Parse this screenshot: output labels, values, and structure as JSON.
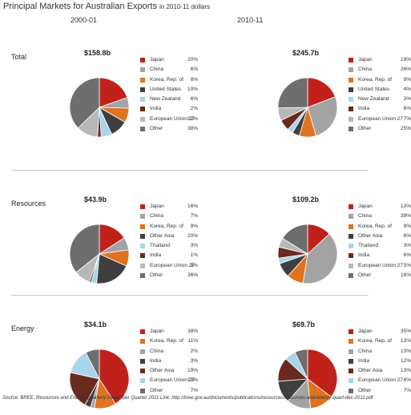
{
  "header": {
    "title": "Principal Markets for Australian Exports",
    "subtitle": "in 2010-11 dollars",
    "col_left": "2000-01",
    "col_right": "2010-11"
  },
  "source": "Source:  BREE, Resources and Energy Quarterly December Quarter 2011   Link:  http://bree.gov.au/documents/publications/resources/resources-and-energy-quart-dec-2011.pdf",
  "chart_data": [
    {
      "type": "pie",
      "section": "Total",
      "period": "2000-01",
      "total": "$158.8b",
      "slices": [
        {
          "label": "Japan",
          "pct": "20%",
          "value": 20,
          "color": "#c0221b"
        },
        {
          "label": "China",
          "pct": "6%",
          "value": 6,
          "color": "#a3a3a3"
        },
        {
          "label": "Korea, Rep. of",
          "pct": "8%",
          "value": 8,
          "color": "#e07320"
        },
        {
          "label": "United States",
          "pct": "10%",
          "value": 10,
          "color": "#3f3f3f"
        },
        {
          "label": "New Zealand",
          "pct": "6%",
          "value": 6,
          "color": "#a9d4ec"
        },
        {
          "label": "India",
          "pct": "2%",
          "value": 2,
          "color": "#6a2a1e"
        },
        {
          "label": "European Union 27",
          "pct": "12%",
          "value": 12,
          "color": "#b8b8b8"
        },
        {
          "label": "Other",
          "pct": "38%",
          "value": 38,
          "color": "#6e6e6e"
        }
      ]
    },
    {
      "type": "pie",
      "section": "Total",
      "period": "2010-11",
      "total": "$245.7b",
      "slices": [
        {
          "label": "Japan",
          "pct": "19%",
          "value": 19,
          "color": "#c0221b"
        },
        {
          "label": "China",
          "pct": "26%",
          "value": 26,
          "color": "#a3a3a3"
        },
        {
          "label": "Korea, Rep. of",
          "pct": "9%",
          "value": 9,
          "color": "#e07320"
        },
        {
          "label": "United States",
          "pct": "4%",
          "value": 4,
          "color": "#3f3f3f"
        },
        {
          "label": "New Zealand",
          "pct": "3%",
          "value": 3,
          "color": "#a9d4ec"
        },
        {
          "label": "India",
          "pct": "6%",
          "value": 6,
          "color": "#6a2a1e"
        },
        {
          "label": "European Union 27",
          "pct": "7%",
          "value": 7,
          "color": "#b8b8b8"
        },
        {
          "label": "Other",
          "pct": "25%",
          "value": 25,
          "color": "#6e6e6e"
        }
      ]
    },
    {
      "type": "pie",
      "section": "Resources",
      "period": "2000-01",
      "total": "$43.9b",
      "slices": [
        {
          "label": "Japan",
          "pct": "16%",
          "value": 16,
          "color": "#c0221b"
        },
        {
          "label": "China",
          "pct": "7%",
          "value": 7,
          "color": "#a3a3a3"
        },
        {
          "label": "Korea, Rep. of",
          "pct": "9%",
          "value": 9,
          "color": "#e07320"
        },
        {
          "label": "Other Asia",
          "pct": "20%",
          "value": 20,
          "color": "#3f3f3f"
        },
        {
          "label": "Thailand",
          "pct": "3%",
          "value": 3,
          "color": "#a9d4ec"
        },
        {
          "label": "India",
          "pct": "1%",
          "value": 1,
          "color": "#6a2a1e"
        },
        {
          "label": "European Union 27",
          "pct": "9%",
          "value": 9,
          "color": "#b8b8b8"
        },
        {
          "label": "Other",
          "pct": "36%",
          "value": 36,
          "color": "#6e6e6e"
        }
      ]
    },
    {
      "type": "pie",
      "section": "Resources",
      "period": "2010-11",
      "total": "$109.2b",
      "slices": [
        {
          "label": "Japan",
          "pct": "13%",
          "value": 13,
          "color": "#c0221b"
        },
        {
          "label": "China",
          "pct": "39%",
          "value": 39,
          "color": "#a3a3a3"
        },
        {
          "label": "Korea, Rep. of",
          "pct": "9%",
          "value": 9,
          "color": "#e07320"
        },
        {
          "label": "Other Asia",
          "pct": "8%",
          "value": 8,
          "color": "#3f3f3f"
        },
        {
          "label": "Thailand",
          "pct": "3%",
          "value": 3,
          "color": "#a9d4ec"
        },
        {
          "label": "India",
          "pct": "6%",
          "value": 6,
          "color": "#6a2a1e"
        },
        {
          "label": "European Union 27",
          "pct": "5%",
          "value": 5,
          "color": "#b8b8b8"
        },
        {
          "label": "Other",
          "pct": "16%",
          "value": 16,
          "color": "#6e6e6e"
        }
      ]
    },
    {
      "type": "pie",
      "section": "Energy",
      "period": "2000-01",
      "total": "$34.1b",
      "slices": [
        {
          "label": "Japan",
          "pct": "38%",
          "value": 38,
          "color": "#c0221b"
        },
        {
          "label": "Korea, Rep. of",
          "pct": "11%",
          "value": 11,
          "color": "#e07320"
        },
        {
          "label": "China",
          "pct": "2%",
          "value": 2,
          "color": "#a3a3a3"
        },
        {
          "label": "India",
          "pct": "3%",
          "value": 3,
          "color": "#3f3f3f"
        },
        {
          "label": "Other Asia",
          "pct": "19%",
          "value": 19,
          "color": "#6a2a1e"
        },
        {
          "label": "European Union 27",
          "pct": "13%",
          "value": 13,
          "color": "#a9d4ec"
        },
        {
          "label": "Other",
          "pct": "7%",
          "value": 7,
          "color": "#6e6e6e"
        }
      ]
    },
    {
      "type": "pie",
      "section": "Energy",
      "period": "2010-11",
      "total": "$69.7b",
      "slices": [
        {
          "label": "Japan",
          "pct": "35%",
          "value": 35,
          "color": "#c0221b"
        },
        {
          "label": "Korea, Rep. of",
          "pct": "13%",
          "value": 13,
          "color": "#e07320"
        },
        {
          "label": "China",
          "pct": "13%",
          "value": 13,
          "color": "#a3a3a3"
        },
        {
          "label": "India",
          "pct": "12%",
          "value": 12,
          "color": "#3f3f3f"
        },
        {
          "label": "Other Asia",
          "pct": "13%",
          "value": 13,
          "color": "#6a2a1e"
        },
        {
          "label": "European Union 27",
          "pct": "6%",
          "value": 6,
          "color": "#a9d4ec"
        },
        {
          "label": "Other",
          "pct": "7%",
          "value": 7,
          "color": "#6e6e6e"
        }
      ]
    }
  ]
}
